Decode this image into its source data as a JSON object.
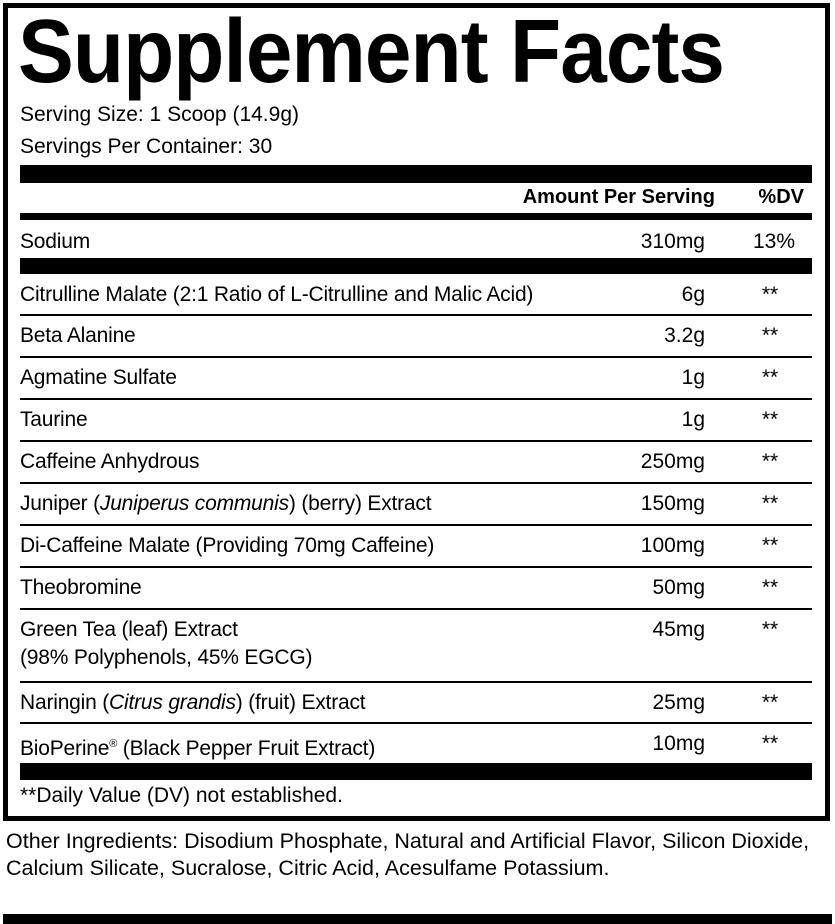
{
  "title": "Supplement Facts",
  "serving_size": "Serving Size: 1 Scoop (14.9g)",
  "servings_per_container": "Servings Per Container: 30",
  "header": {
    "amount": "Amount Per Serving",
    "dv": "%DV"
  },
  "sodium": {
    "name": "Sodium",
    "amount": "310mg",
    "dv": "13%"
  },
  "rows": [
    {
      "name": "Citrulline Malate (2:1 Ratio of L-Citrulline and Malic Acid)",
      "amount": "6g",
      "dv": "**"
    },
    {
      "name": "Beta Alanine",
      "amount": "3.2g",
      "dv": "**"
    },
    {
      "name": "Agmatine Sulfate",
      "amount": "1g",
      "dv": "**"
    },
    {
      "name": "Taurine",
      "amount": "1g",
      "dv": "**"
    },
    {
      "name": "Caffeine Anhydrous",
      "amount": "250mg",
      "dv": "**"
    },
    {
      "name_pre": "Juniper (",
      "name_italic": "Juniperus communis",
      "name_post": ") (berry) Extract",
      "amount": "150mg",
      "dv": "**"
    },
    {
      "name": "Di-Caffeine Malate (Providing 70mg Caffeine)",
      "amount": "100mg",
      "dv": "**"
    },
    {
      "name": "Theobromine",
      "amount": "50mg",
      "dv": "**"
    },
    {
      "name": "Green Tea (leaf) Extract",
      "name_line2": "(98% Polyphenols, 45% EGCG)",
      "amount": "45mg",
      "dv": "**"
    },
    {
      "name_pre": "Naringin (",
      "name_italic": "Citrus grandis",
      "name_post": ") (fruit) Extract",
      "amount": "25mg",
      "dv": "**"
    },
    {
      "name_pre": "BioPerine",
      "name_sup": "®",
      "name_post": " (Black Pepper Fruit Extract)",
      "amount": "10mg",
      "dv": "**"
    }
  ],
  "footnote": "**Daily Value (DV) not established.",
  "other_ingredients": "Other Ingredients: Disodium Phosphate, Natural and Artificial Flavor, Silicon Dioxide, Calcium Silicate, Sucralose, Citric Acid, Acesulfame Potassium."
}
